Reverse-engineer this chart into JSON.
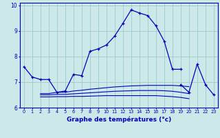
{
  "xlabel": "Graphe des températures (°c)",
  "bg_color": "#cce8e8",
  "grid_color": "#99cccc",
  "line_color": "#0000bb",
  "hours": [
    0,
    1,
    2,
    3,
    4,
    5,
    6,
    7,
    8,
    9,
    10,
    11,
    12,
    13,
    14,
    15,
    16,
    17,
    18,
    19,
    20,
    21,
    22,
    23
  ],
  "main_line": [
    7.6,
    7.2,
    7.1,
    7.1,
    6.6,
    6.65,
    7.3,
    7.25,
    8.2,
    8.3,
    8.45,
    8.8,
    9.3,
    9.82,
    9.7,
    9.6,
    9.2,
    8.6,
    7.5,
    7.5,
    null,
    null,
    null,
    null
  ],
  "flat_line1": [
    null,
    null,
    6.55,
    6.55,
    6.6,
    6.6,
    6.65,
    6.68,
    6.72,
    6.75,
    6.78,
    6.81,
    6.83,
    6.85,
    6.86,
    6.87,
    6.87,
    6.87,
    6.87,
    6.85,
    6.82,
    null,
    null,
    null
  ],
  "flat_line2": [
    null,
    null,
    6.5,
    6.5,
    6.52,
    6.52,
    6.54,
    6.56,
    6.58,
    6.6,
    6.62,
    6.64,
    6.65,
    6.66,
    6.67,
    6.67,
    6.67,
    6.66,
    6.64,
    6.6,
    6.55,
    null,
    null,
    null
  ],
  "flat_line3": [
    null,
    null,
    6.42,
    6.42,
    6.43,
    6.43,
    6.44,
    6.44,
    6.45,
    6.46,
    6.47,
    6.47,
    6.47,
    6.47,
    6.47,
    6.47,
    6.47,
    6.45,
    6.43,
    6.4,
    6.35,
    null,
    null,
    null
  ],
  "spike_line": [
    null,
    null,
    null,
    null,
    null,
    null,
    null,
    null,
    null,
    null,
    null,
    null,
    null,
    null,
    null,
    null,
    null,
    null,
    null,
    6.9,
    6.6,
    7.7,
    6.9,
    6.5
  ],
  "ylim": [
    6.0,
    10.1
  ],
  "yticks": [
    6,
    7,
    8,
    9,
    10
  ],
  "xlim": [
    -0.5,
    23.5
  ]
}
